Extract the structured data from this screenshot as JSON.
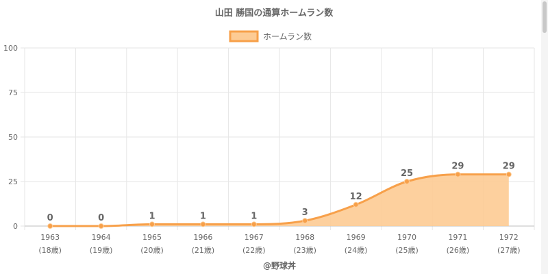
{
  "chart_data": {
    "type": "area",
    "title": "山田 勝国の通算ホームラン数",
    "legend": {
      "label": "ホームラン数",
      "position": "top-center"
    },
    "categories": [
      "1963",
      "1964",
      "1965",
      "1966",
      "1967",
      "1968",
      "1969",
      "1970",
      "1971",
      "1972"
    ],
    "ages": [
      "(18歳)",
      "(19歳)",
      "(20歳)",
      "(21歳)",
      "(22歳)",
      "(23歳)",
      "(24歳)",
      "(25歳)",
      "(26歳)",
      "(27歳)"
    ],
    "values": [
      0,
      0,
      1,
      1,
      1,
      3,
      12,
      25,
      29,
      29
    ],
    "ylim": [
      0,
      100
    ],
    "yticks": [
      0,
      25,
      50,
      75,
      100
    ],
    "grid": true,
    "colors": {
      "line": "#f7a04a",
      "fill": "#fdcb94",
      "point": "#f7a04a",
      "grid": "#e6e6e6",
      "text": "#666666"
    }
  },
  "footer": {
    "credit": "@野球丼"
  }
}
